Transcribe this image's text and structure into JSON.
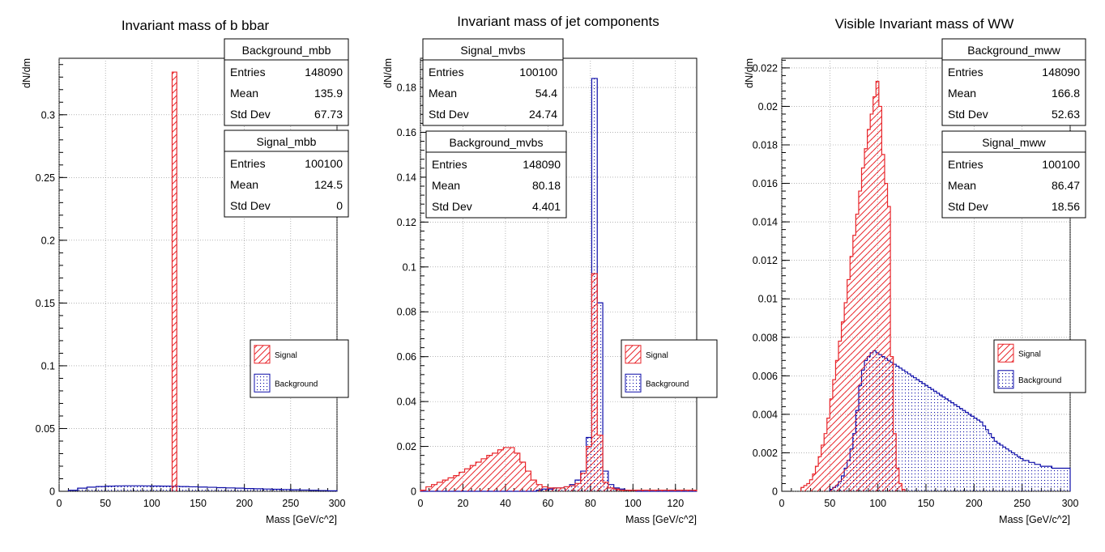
{
  "colors": {
    "signal": "#e8262b",
    "background": "#0c0ca8",
    "grid": "#888888"
  },
  "chart_data": [
    {
      "type": "bar",
      "title": "Invariant mass of b bbar",
      "xlabel": "Mass [GeV/c^2]",
      "ylabel": "dN/dm",
      "xlim": [
        0,
        300
      ],
      "ylim": [
        0,
        0.345
      ],
      "xticks": [
        "0",
        "50",
        "100",
        "150",
        "200",
        "250",
        "300"
      ],
      "yticks": [
        "0",
        "0.05",
        "0.1",
        "0.15",
        "0.2",
        "0.25",
        "0.3"
      ],
      "grid": true,
      "legend": {
        "position": "bottom-right",
        "entries": [
          "Signal",
          "Background"
        ]
      },
      "stats": [
        {
          "name": "Background_mbb",
          "entries": "148090",
          "mean": "135.9",
          "std_dev": "67.73"
        },
        {
          "name": "Signal_mbb",
          "entries": "100100",
          "mean": "124.5",
          "std_dev": "0"
        }
      ],
      "series": [
        {
          "name": "Signal",
          "bins": [
            [
              122,
              127,
              0.334
            ]
          ]
        },
        {
          "name": "Background",
          "x0": 10,
          "bin_width": 10,
          "values": [
            0.0008,
            0.0025,
            0.0033,
            0.0038,
            0.0041,
            0.0043,
            0.0044,
            0.0044,
            0.0043,
            0.0042,
            0.0041,
            0.004,
            0.0038,
            0.0036,
            0.0034,
            0.0032,
            0.0029,
            0.0027,
            0.0025,
            0.0022,
            0.002,
            0.0018,
            0.0016,
            0.0014,
            0.0012,
            0.001,
            0.0008,
            0.0006,
            0.0004
          ]
        }
      ]
    },
    {
      "type": "bar",
      "title": "Invariant mass of jet components",
      "xlabel": "Mass [GeV/c^2]",
      "ylabel": "dN/dm",
      "xlim": [
        0,
        130
      ],
      "ylim": [
        0,
        0.193
      ],
      "xticks": [
        "0",
        "20",
        "40",
        "60",
        "80",
        "100",
        "120"
      ],
      "yticks": [
        "0",
        "0.02",
        "0.04",
        "0.06",
        "0.08",
        "0.1",
        "0.12",
        "0.14",
        "0.16",
        "0.18"
      ],
      "grid": true,
      "legend": {
        "position": "right",
        "entries": [
          "Signal",
          "Background"
        ]
      },
      "stats": [
        {
          "name": "Signal_mvbs",
          "entries": "100100",
          "mean": "54.4",
          "std_dev": "24.74"
        },
        {
          "name": "Background_mvbs",
          "entries": "148090",
          "mean": "80.18",
          "std_dev": "4.401"
        }
      ],
      "series": [
        {
          "name": "Signal",
          "x0": 0,
          "bin_width": 2.6,
          "values": [
            0.0005,
            0.002,
            0.003,
            0.004,
            0.005,
            0.006,
            0.007,
            0.0085,
            0.01,
            0.0115,
            0.013,
            0.0145,
            0.016,
            0.017,
            0.0185,
            0.0195,
            0.0195,
            0.017,
            0.013,
            0.009,
            0.005,
            0.003,
            0.002,
            0.0015,
            0.0015,
            0.0015,
            0.002,
            0.0025,
            0.0035,
            0.008,
            0.02,
            0.097,
            0.025,
            0.004,
            0.0015,
            0.001,
            0.0005,
            0.0005,
            0.0005,
            0.0005,
            0.0005,
            0.0005,
            0.0005,
            0.0005,
            0.0005,
            0.0005,
            0.0005,
            0.0005,
            0.0005,
            0.0005
          ]
        },
        {
          "name": "Background",
          "x0": 0,
          "bin_width": 2.6,
          "values": [
            0,
            0,
            0,
            0,
            0,
            0,
            0,
            0,
            0,
            0,
            0,
            0,
            0,
            0,
            0,
            0,
            0,
            0,
            0,
            0,
            0,
            0.0005,
            0.001,
            0.001,
            0.0015,
            0.0015,
            0.002,
            0.003,
            0.005,
            0.009,
            0.024,
            0.184,
            0.084,
            0.009,
            0.003,
            0.0015,
            0.001,
            0.0005,
            0.0005,
            0,
            0,
            0,
            0,
            0,
            0,
            0,
            0,
            0,
            0,
            0
          ]
        }
      ]
    },
    {
      "type": "bar",
      "title": "Visible Invariant mass of WW",
      "xlabel": "Mass [GeV/c^2]",
      "ylabel": "dN/dm",
      "xlim": [
        0,
        300
      ],
      "ylim": [
        0,
        0.0225
      ],
      "xticks": [
        "0",
        "50",
        "100",
        "150",
        "200",
        "250",
        "300"
      ],
      "yticks": [
        "0",
        "0.002",
        "0.004",
        "0.006",
        "0.008",
        "0.01",
        "0.012",
        "0.014",
        "0.016",
        "0.018",
        "0.02",
        "0.022"
      ],
      "grid": true,
      "legend": {
        "position": "right",
        "entries": [
          "Signal",
          "Background"
        ]
      },
      "stats": [
        {
          "name": "Background_mww",
          "entries": "148090",
          "mean": "166.8",
          "std_dev": "52.63"
        },
        {
          "name": "Signal_mww",
          "entries": "100100",
          "mean": "86.47",
          "std_dev": "18.56"
        }
      ],
      "series": [
        {
          "name": "Signal",
          "x0": 20,
          "bin_width": 3,
          "values": [
            0.0002,
            0.0003,
            0.0004,
            0.0006,
            0.0009,
            0.0013,
            0.0018,
            0.0024,
            0.003,
            0.0038,
            0.0048,
            0.0058,
            0.0068,
            0.0078,
            0.0088,
            0.0098,
            0.011,
            0.0122,
            0.0133,
            0.0144,
            0.0156,
            0.0168,
            0.0178,
            0.0188,
            0.0196,
            0.0205,
            0.0213,
            0.02,
            0.0175,
            0.016,
            0.0148,
            0.007,
            0.003,
            0.0012,
            0.0004,
            0.0001
          ]
        },
        {
          "name": "Background",
          "x0": 50,
          "bin_width": 3,
          "values": [
            0.0001,
            0.0002,
            0.0003,
            0.0005,
            0.0008,
            0.0012,
            0.0016,
            0.0022,
            0.003,
            0.0042,
            0.0055,
            0.0063,
            0.0068,
            0.007,
            0.0072,
            0.0073,
            0.0072,
            0.0071,
            0.007,
            0.0069,
            0.0068,
            0.0067,
            0.0066,
            0.0065,
            0.0064,
            0.0063,
            0.0062,
            0.0061,
            0.006,
            0.0059,
            0.0058,
            0.0057,
            0.0056,
            0.0055,
            0.0054,
            0.0053,
            0.0052,
            0.0051,
            0.005,
            0.0049,
            0.0048,
            0.0047,
            0.0046,
            0.0045,
            0.0044,
            0.0043,
            0.0042,
            0.0041,
            0.004,
            0.0039,
            0.0038,
            0.0037,
            0.0036,
            0.0034,
            0.0032,
            0.003,
            0.0028,
            0.0026,
            0.0025,
            0.0024,
            0.0023,
            0.0022,
            0.0021,
            0.002,
            0.0019,
            0.0018,
            0.0017,
            0.0016,
            0.0016,
            0.0015,
            0.0015,
            0.0014,
            0.0014,
            0.0013,
            0.0013,
            0.0013,
            0.0013,
            0.0012,
            0.0012,
            0.0012,
            0.0012,
            0.0012,
            0.0012,
            0.0012
          ]
        }
      ]
    }
  ]
}
